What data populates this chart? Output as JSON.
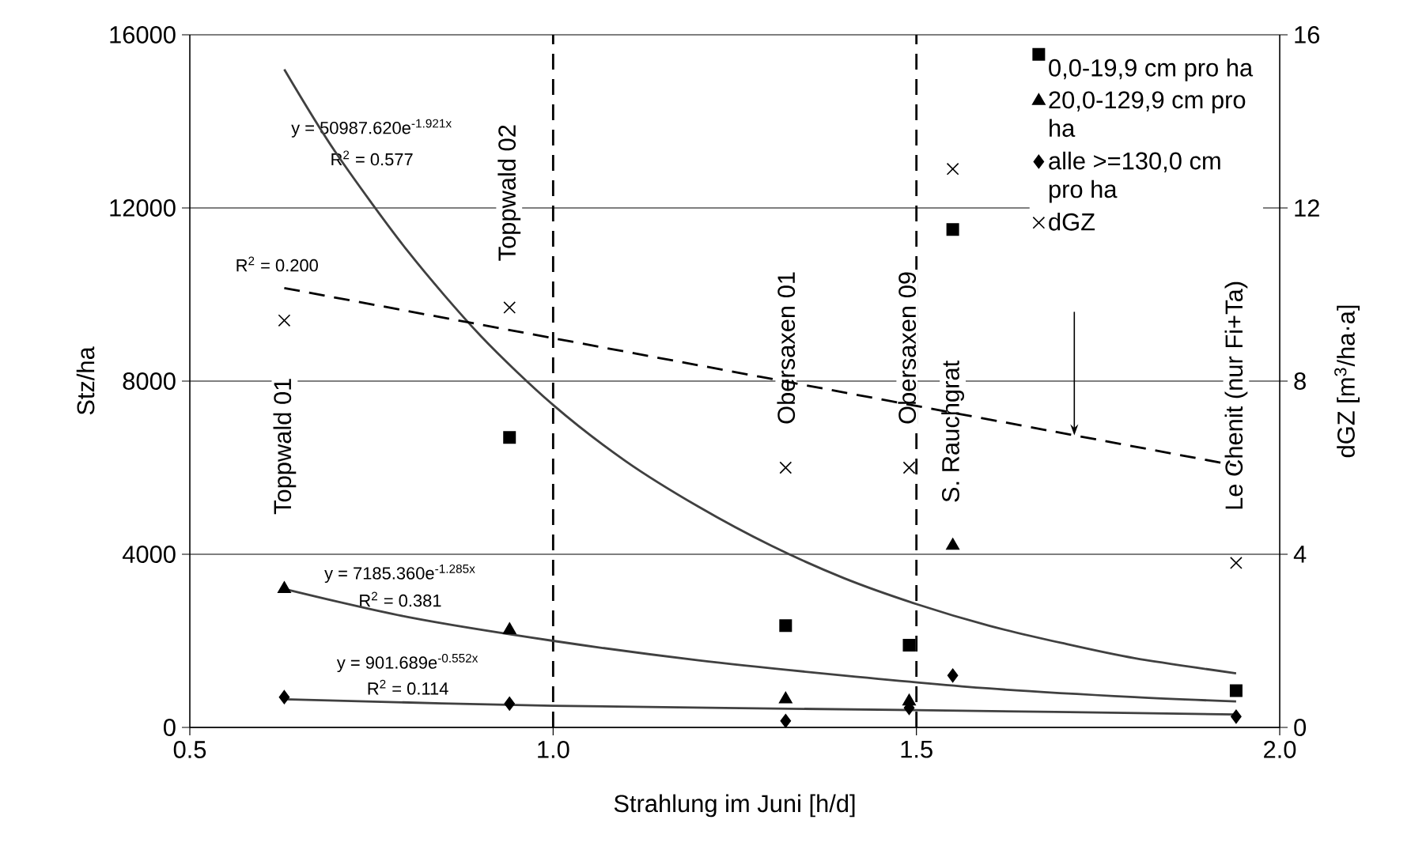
{
  "chart_data": {
    "type": "scatter",
    "xlabel": "Strahlung im Juni [h/d]",
    "ylabel": "Stz/ha",
    "y2label": "dGZ [m$^{3}$/ha·a]",
    "x": [
      0.63,
      0.94,
      1.32,
      1.49,
      1.55,
      1.94
    ],
    "xlim": [
      0.5,
      2.0
    ],
    "xticks": [
      0.5,
      {
        "value": 1.0,
        "label": "1.0"
      },
      1.5,
      {
        "value": 2.0,
        "label": "2.0"
      }
    ],
    "ylim": [
      0,
      16000
    ],
    "yticks": [
      0,
      4000,
      8000,
      12000,
      16000
    ],
    "y2lim": [
      0,
      16
    ],
    "y2ticks": [
      0,
      4,
      8,
      12,
      16
    ],
    "grid": "y",
    "legend": "top right",
    "series": [
      {
        "name": "0,0-19,9 cm pro ha",
        "marker": "square",
        "color": "#000000",
        "values": [
          null,
          6700,
          2350,
          1900,
          11500,
          850
        ]
      },
      {
        "name": "20,0-129,9 cm pro ha",
        "marker": "triangle",
        "color": "#000000",
        "values": [
          3200,
          2250,
          650,
          600,
          4200,
          null
        ]
      },
      {
        "name": "alle >=130,0 cm pro ha",
        "marker": "diamond",
        "color": "#000000",
        "values": [
          700,
          550,
          150,
          450,
          1200,
          250
        ]
      },
      {
        "name": "dGZ",
        "marker": "cross",
        "axis": "y2",
        "color": "#000000",
        "values": [
          9.4,
          9.7,
          6.0,
          6.0,
          12.9,
          3.8
        ]
      },
      {
        "type": "line",
        "marker": "none",
        "line_style": "solid",
        "color": "#404040",
        "x": [
          0.63,
          0.7,
          0.8,
          0.9,
          1.0,
          1.1,
          1.2,
          1.3,
          1.4,
          1.5,
          1.6,
          1.7,
          1.8,
          1.94
        ],
        "values": [
          15200,
          13300,
          11000,
          9050,
          7450,
          6150,
          5100,
          4200,
          3450,
          2850,
          2350,
          1950,
          1600,
          1250
        ]
      },
      {
        "type": "line",
        "marker": "none",
        "line_style": "solid",
        "color": "#404040",
        "x": [
          0.63,
          0.8,
          1.0,
          1.2,
          1.4,
          1.6,
          1.8,
          1.94
        ],
        "values": [
          3200,
          2550,
          2000,
          1550,
          1200,
          900,
          700,
          600
        ]
      },
      {
        "type": "line",
        "marker": "none",
        "line_style": "solid",
        "color": "#404040",
        "x": [
          0.63,
          1.0,
          1.5,
          1.94
        ],
        "values": [
          650,
          500,
          400,
          300
        ]
      },
      {
        "type": "line",
        "marker": "none",
        "line_style": "dashed",
        "axis": "y2",
        "color": "#000000",
        "x": [
          0.63,
          1.94
        ],
        "values": [
          10.15,
          6.05
        ]
      }
    ],
    "ref_lines": [
      {
        "axis": "x",
        "value": 1.0,
        "line_style": "dashed",
        "color": "#000000"
      },
      {
        "axis": "x",
        "value": 1.5,
        "line_style": "dashed",
        "color": "#000000"
      }
    ],
    "annotations": [
      "y = 50987.620e$^{-1.921x}$",
      "R$^{2}$ = 0.577",
      "R$^{2}$ = 0.200",
      "y = 7185.360e$^{-1.285x}$",
      "R$^{2}$ = 0.381",
      "y = 901.689e$^{-0.552x}$",
      "R$^{2}$ = 0.114",
      "Toppwald 01",
      "Toppwald 02",
      "Obersaxen 01",
      "Obersaxen 09",
      "S. Rauchgrat",
      "Le Chenit (nur Fi+Ta)"
    ]
  }
}
